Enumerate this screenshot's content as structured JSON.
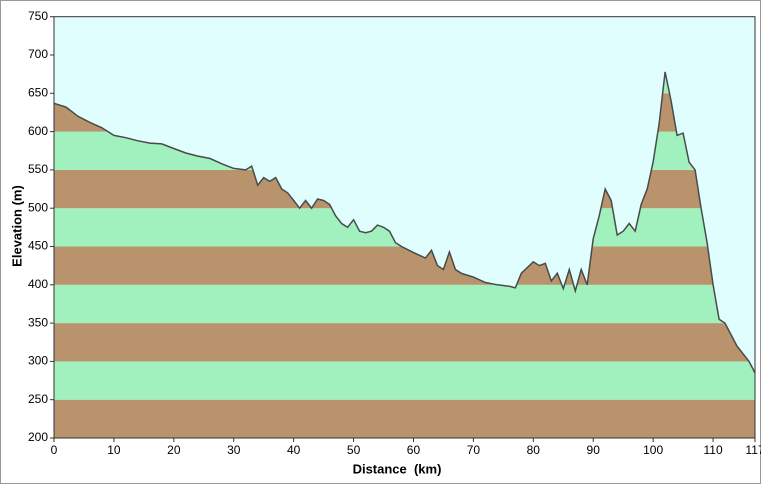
{
  "chart_data": {
    "type": "elevation-profile",
    "xlabel": "Distance  (km)",
    "ylabel": "Elevation (m)",
    "xlim": [
      0,
      117
    ],
    "ylim": [
      200,
      750
    ],
    "xticks": [
      0,
      10,
      20,
      30,
      40,
      50,
      60,
      70,
      80,
      90,
      100,
      110,
      117
    ],
    "yticks": [
      200,
      250,
      300,
      350,
      400,
      450,
      500,
      550,
      600,
      650,
      700,
      750
    ],
    "band_colors": [
      "#b9936b",
      "#a1f1bf"
    ],
    "line_color": "#4a4a4a",
    "background": "#e0fefe",
    "x": [
      0,
      2,
      4,
      6,
      8,
      10,
      12,
      14,
      16,
      18,
      20,
      22,
      24,
      26,
      28,
      30,
      32,
      33,
      34,
      35,
      36,
      37,
      38,
      39,
      40,
      41,
      42,
      43,
      44,
      45,
      46,
      47,
      48,
      49,
      50,
      51,
      52,
      53,
      54,
      55,
      56,
      57,
      58,
      60,
      62,
      63,
      64,
      65,
      66,
      67,
      68,
      70,
      72,
      74,
      76,
      77,
      78,
      80,
      81,
      82,
      83,
      84,
      85,
      86,
      87,
      88,
      89,
      90,
      91,
      92,
      93,
      94,
      95,
      96,
      97,
      98,
      99,
      100,
      101,
      102,
      103,
      104,
      105,
      106,
      107,
      108,
      109,
      110,
      111,
      112,
      113,
      114,
      115,
      116,
      117
    ],
    "series": [
      {
        "name": "Elevation",
        "values": [
          637,
          632,
          620,
          612,
          605,
          595,
          592,
          588,
          585,
          584,
          578,
          572,
          568,
          565,
          558,
          552,
          550,
          555,
          530,
          540,
          535,
          540,
          525,
          520,
          510,
          500,
          510,
          500,
          512,
          510,
          505,
          490,
          480,
          475,
          485,
          470,
          468,
          470,
          478,
          475,
          470,
          455,
          450,
          442,
          435,
          445,
          425,
          420,
          443,
          420,
          415,
          410,
          403,
          400,
          398,
          396,
          415,
          430,
          425,
          428,
          405,
          415,
          395,
          420,
          392,
          420,
          400,
          460,
          490,
          525,
          510,
          465,
          470,
          480,
          470,
          505,
          525,
          560,
          610,
          678,
          640,
          595,
          598,
          560,
          550,
          500,
          455,
          400,
          355,
          350,
          335,
          320,
          310,
          300,
          285
        ]
      }
    ]
  }
}
